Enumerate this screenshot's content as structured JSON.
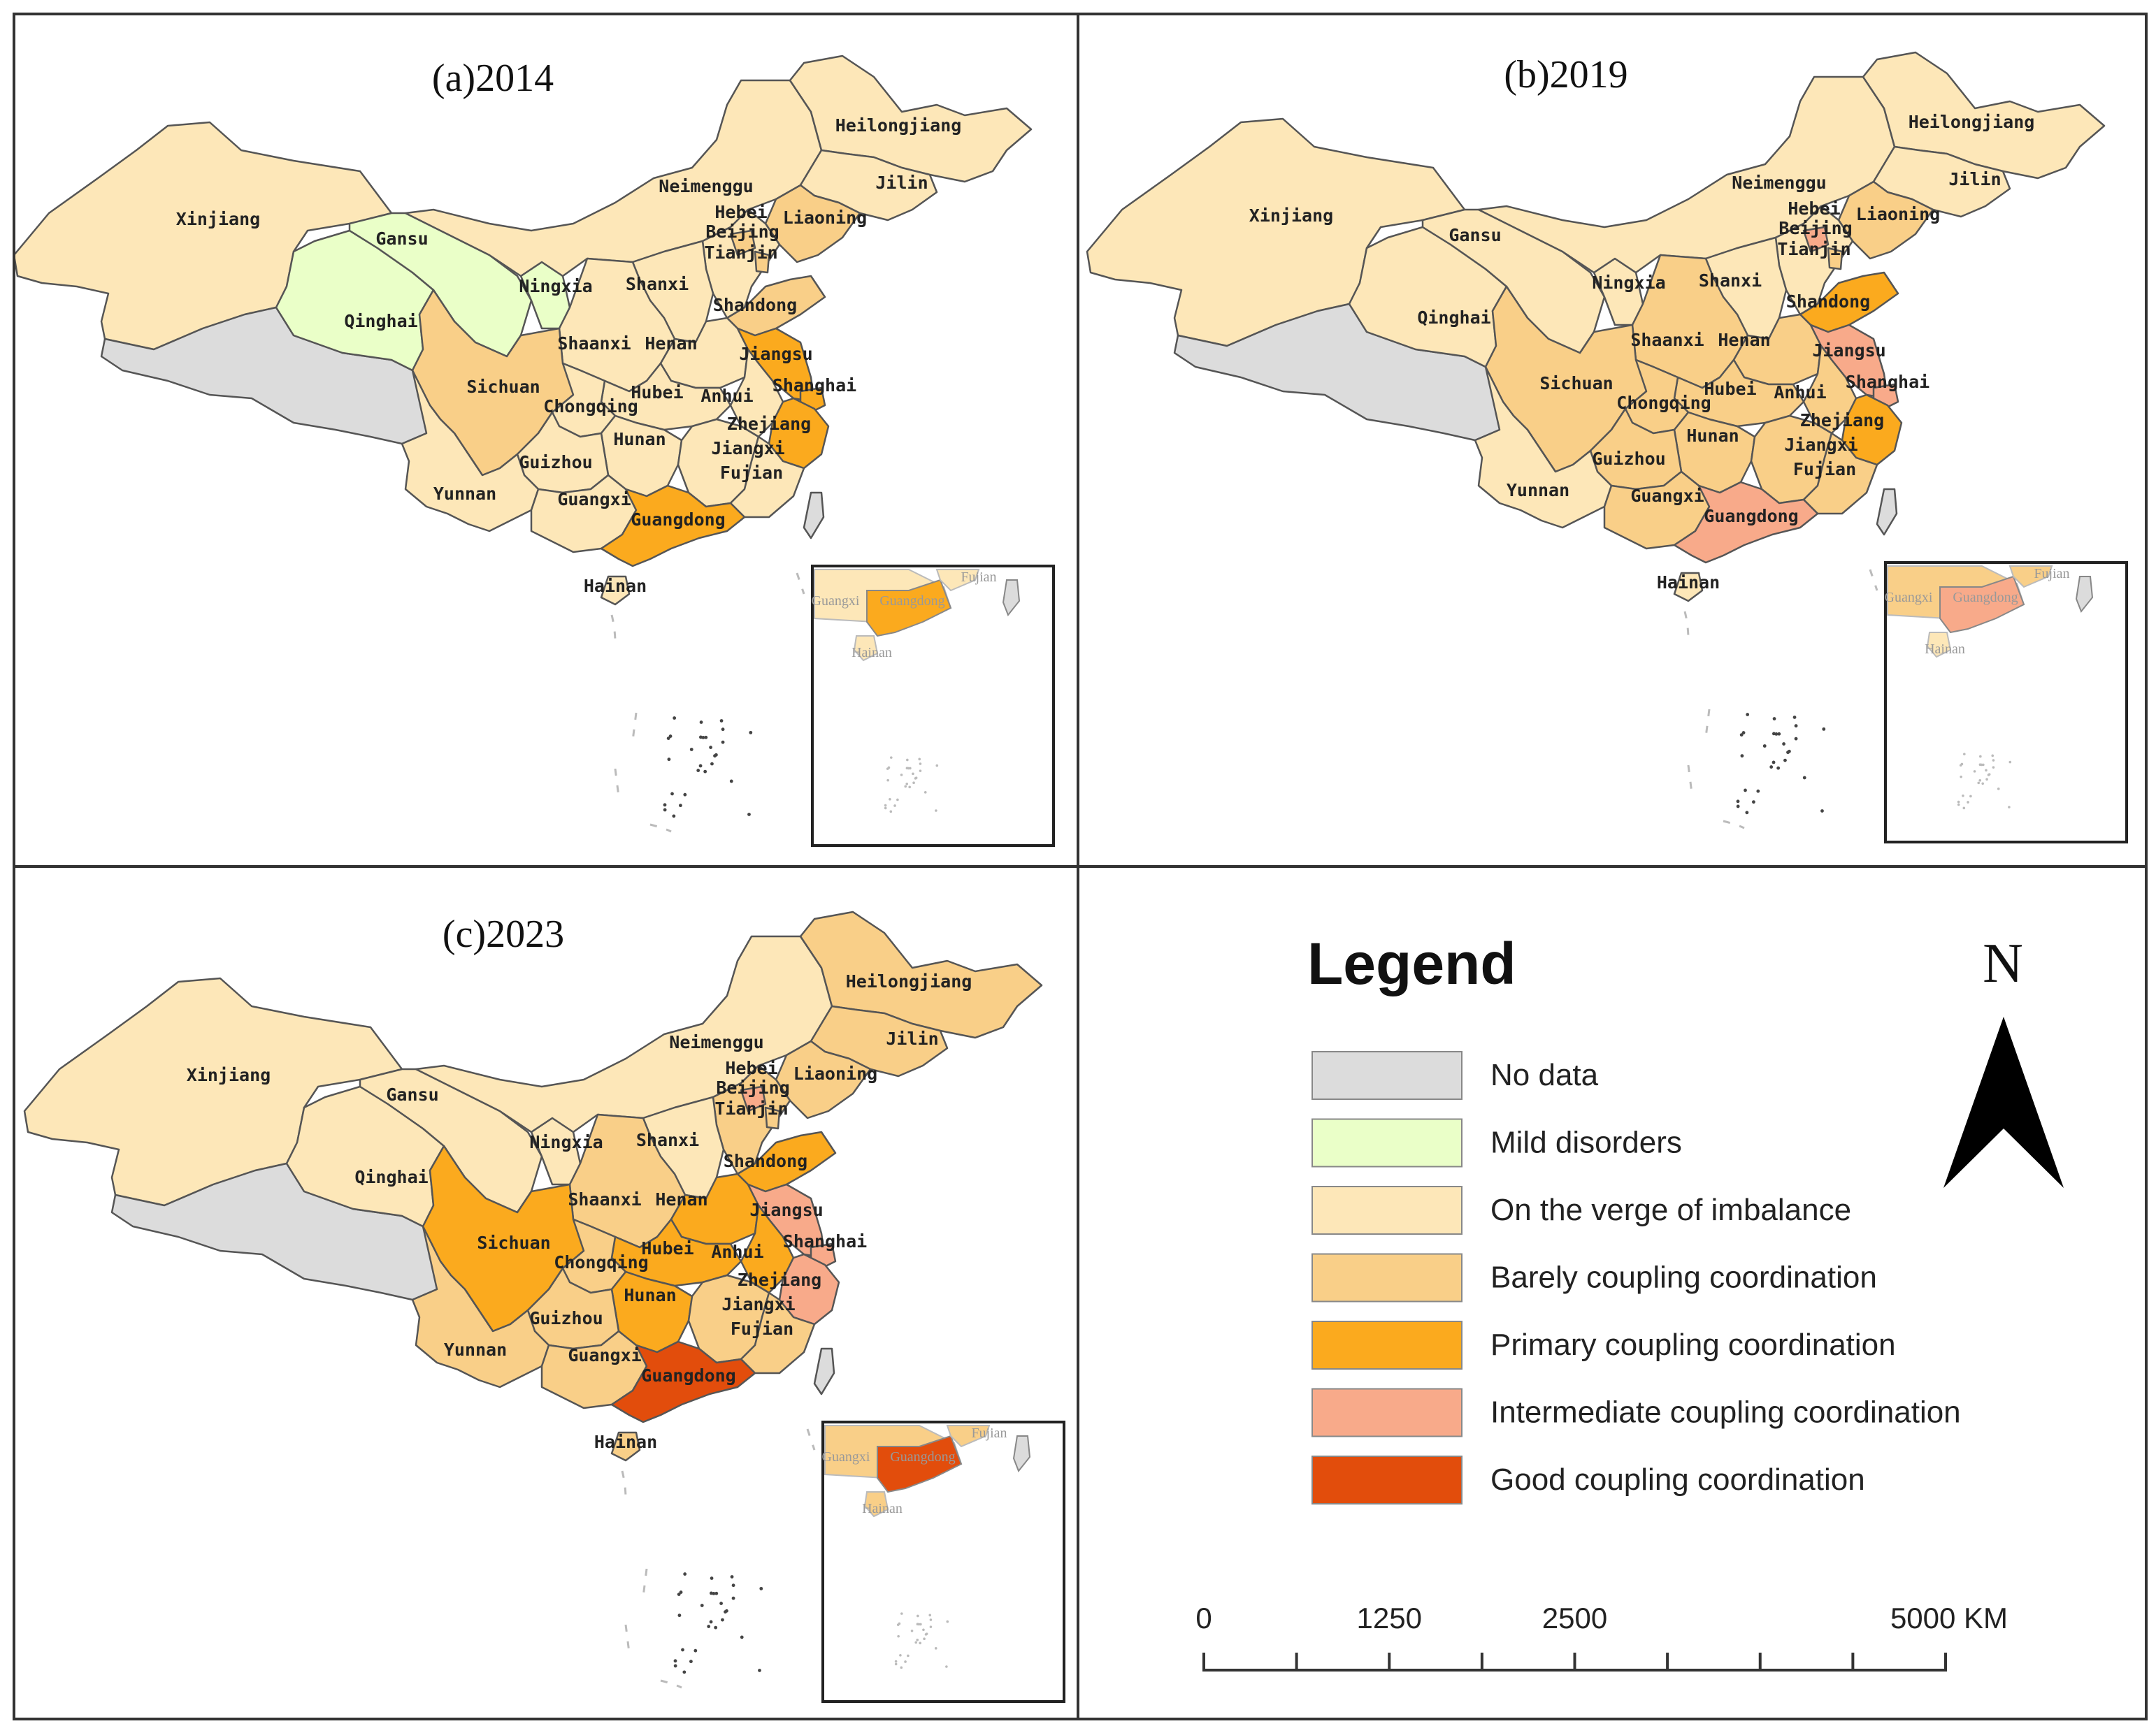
{
  "colors": {
    "No data": "#dcdcdc",
    "Mild disorders": "#eaffc8",
    "On the verge of imbalance": "#fde7b8",
    "Barely coupling coordination": "#f9cf88",
    "Primary coupling coordination": "#fbaa1e",
    "Intermediate coupling coordination": "#f8aa8a",
    "Good coupling coordination": "#e24d0c"
  },
  "panels": [
    {
      "title": "(a)2014",
      "classes": {
        "xinjiang": "On the verge of imbalance",
        "tibet": "No data",
        "qinghai": "Mild disorders",
        "gansu": "Mild disorders",
        "ningxia": "Mild disorders",
        "neimenggu": "On the verge of imbalance",
        "heilongjiang": "On the verge of imbalance",
        "jilin": "On the verge of imbalance",
        "liaoning": "Barely coupling coordination",
        "hebei": "On the verge of imbalance",
        "beijing": "Barely coupling coordination",
        "tianjin": "Barely coupling coordination",
        "shanxi": "On the verge of imbalance",
        "shandong": "Barely coupling coordination",
        "shaanxi": "On the verge of imbalance",
        "henan": "On the verge of imbalance",
        "jiangsu": "Primary coupling coordination",
        "anhui": "On the verge of imbalance",
        "shanghai": "Primary coupling coordination",
        "zhejiang": "Primary coupling coordination",
        "hubei": "On the verge of imbalance",
        "sichuan": "Barely coupling coordination",
        "chongqing": "On the verge of imbalance",
        "hunan": "On the verge of imbalance",
        "jiangxi": "On the verge of imbalance",
        "fujian": "On the verge of imbalance",
        "guizhou": "On the verge of imbalance",
        "yunnan": "On the verge of imbalance",
        "guangxi": "On the verge of imbalance",
        "guangdong": "Primary coupling coordination",
        "hainan": "On the verge of imbalance",
        "taiwan": "No data"
      },
      "inset_labels": [
        "Fujian",
        "Guangxi",
        "Guangdong",
        "Hainan"
      ]
    },
    {
      "title": "(b)2019",
      "classes": {
        "xinjiang": "On the verge of imbalance",
        "tibet": "No data",
        "qinghai": "On the verge of imbalance",
        "gansu": "On the verge of imbalance",
        "ningxia": "On the verge of imbalance",
        "neimenggu": "On the verge of imbalance",
        "heilongjiang": "On the verge of imbalance",
        "jilin": "On the verge of imbalance",
        "liaoning": "Barely coupling coordination",
        "hebei": "On the verge of imbalance",
        "beijing": "Intermediate coupling coordination",
        "tianjin": "Barely coupling coordination",
        "shanxi": "On the verge of imbalance",
        "shandong": "Primary coupling coordination",
        "shaanxi": "Barely coupling coordination",
        "henan": "Barely coupling coordination",
        "jiangsu": "Intermediate coupling coordination",
        "anhui": "Barely coupling coordination",
        "shanghai": "Intermediate coupling coordination",
        "zhejiang": "Primary coupling coordination",
        "hubei": "Barely coupling coordination",
        "sichuan": "Barely coupling coordination",
        "chongqing": "Barely coupling coordination",
        "hunan": "Barely coupling coordination",
        "jiangxi": "Barely coupling coordination",
        "fujian": "Barely coupling coordination",
        "guizhou": "Barely coupling coordination",
        "yunnan": "On the verge of imbalance",
        "guangxi": "Barely coupling coordination",
        "guangdong": "Intermediate coupling coordination",
        "hainan": "On the verge of imbalance",
        "taiwan": "No data"
      },
      "inset_labels": [
        "Fujian",
        "Guangxi",
        "Guangdong",
        "Hainan"
      ]
    },
    {
      "title": "(c)2023",
      "classes": {
        "xinjiang": "On the verge of imbalance",
        "tibet": "No data",
        "qinghai": "On the verge of imbalance",
        "gansu": "On the verge of imbalance",
        "ningxia": "On the verge of imbalance",
        "neimenggu": "On the verge of imbalance",
        "heilongjiang": "Barely coupling coordination",
        "jilin": "Barely coupling coordination",
        "liaoning": "Barely coupling coordination",
        "hebei": "Barely coupling coordination",
        "beijing": "Intermediate coupling coordination",
        "tianjin": "Barely coupling coordination",
        "shanxi": "On the verge of imbalance",
        "shandong": "Primary coupling coordination",
        "shaanxi": "Barely coupling coordination",
        "henan": "Primary coupling coordination",
        "jiangsu": "Intermediate coupling coordination",
        "anhui": "Primary coupling coordination",
        "shanghai": "Intermediate coupling coordination",
        "zhejiang": "Intermediate coupling coordination",
        "hubei": "Primary coupling coordination",
        "sichuan": "Primary coupling coordination",
        "chongqing": "Barely coupling coordination",
        "hunan": "Primary coupling coordination",
        "jiangxi": "Barely coupling coordination",
        "fujian": "Barely coupling coordination",
        "guizhou": "Barely coupling coordination",
        "yunnan": "Barely coupling coordination",
        "guangxi": "Barely coupling coordination",
        "guangdong": "Good coupling coordination",
        "hainan": "Barely coupling coordination",
        "taiwan": "No data"
      },
      "inset_labels": [
        "Fujian",
        "Guangxi",
        "Guangdong",
        "Hainan"
      ]
    }
  ],
  "province_labels": {
    "xinjiang": "Xinjiang",
    "gansu": "Gansu",
    "qinghai": "Qinghai",
    "ningxia": "Ningxia",
    "neimenggu": "Neimenggu",
    "heilongjiang": "Heilongjiang",
    "jilin": "Jilin",
    "liaoning": "Liaoning",
    "hebei": "Hebei",
    "beijing": "Beijing",
    "tianjin": "Tianjin",
    "shanxi": "Shanxi",
    "shandong": "Shandong",
    "shaanxi": "Shaanxi",
    "henan": "Henan",
    "jiangsu": "Jiangsu",
    "anhui": "Anhui",
    "shanghai": "Shanghai",
    "zhejiang": "Zhejiang",
    "hubei": "Hubei",
    "sichuan": "Sichuan",
    "chongqing": "Chongqing",
    "hunan": "Hunan",
    "jiangxi": "Jiangxi",
    "fujian": "Fujian",
    "guizhou": "Guizhou",
    "yunnan": "Yunnan",
    "guangxi": "Guangxi",
    "guangdong": "Guangdong",
    "hainan": "Hainan"
  },
  "legend": {
    "title": "Legend",
    "items": [
      "No data",
      "Mild disorders",
      "On the verge of imbalance",
      "Barely coupling coordination",
      "Primary coupling coordination",
      "Intermediate coupling coordination",
      "Good coupling coordination"
    ]
  },
  "north_arrow": {
    "label": "N"
  },
  "scale_bar": {
    "ticks": [
      "0",
      "1250",
      "2500",
      "5000 KM"
    ]
  }
}
